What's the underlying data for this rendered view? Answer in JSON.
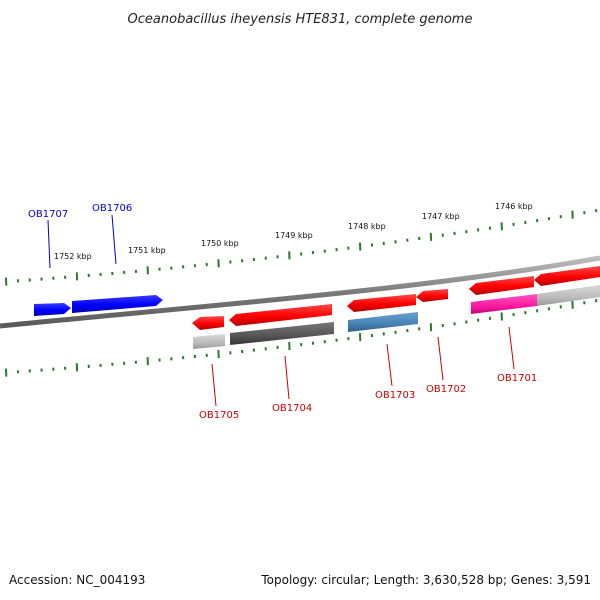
{
  "title": "Oceanobacillus iheyensis HTE831, complete genome",
  "footer": {
    "accession": "Accession: NC_004193",
    "stats": "Topology: circular; Length: 3,630,528 bp; Genes: 3,591"
  },
  "colors": {
    "forward_gene": "#0000ff",
    "forward_label": "#0000cc",
    "reverse_gene": "#ff0000",
    "reverse_label": "#cc0000",
    "ticks": "#2a7a2a",
    "backbone": "#808080",
    "dark_gray": "#555555",
    "light_gray": "#bbbbbb",
    "steel_blue": "#4682b4",
    "magenta": "#ff1493"
  },
  "kbp_labels": [
    "1752 kbp",
    "1751 kbp",
    "1750 kbp",
    "1749 kbp",
    "1748 kbp",
    "1747 kbp",
    "1746 kbp"
  ],
  "gene_labels": [
    "OB1707",
    "OB1706",
    "OB1705",
    "OB1704",
    "OB1703",
    "OB1702",
    "OB1701"
  ]
}
